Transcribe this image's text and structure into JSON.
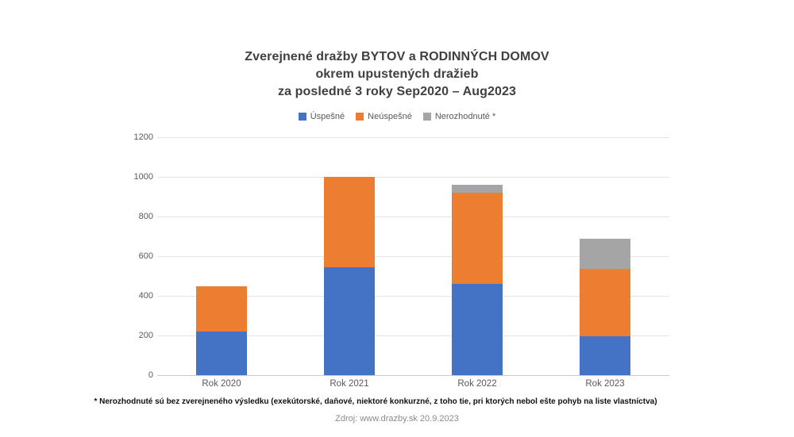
{
  "title": {
    "line1": "Zverejnené dražby BYTOV a RODINNÝCH DOMOV",
    "line2": "okrem upustených dražieb",
    "line3": "za posledné 3 roky Sep2020 – Aug2023"
  },
  "chart_data": {
    "type": "bar",
    "stacked": true,
    "title": "Zverejnené dražby BYTOV a RODINNÝCH DOMOV okrem upustených dražieb za posledné 3 roky Sep2020 – Aug2023",
    "categories": [
      "Rok 2020",
      "Rok 2021",
      "Rok 2022",
      "Rok 2023"
    ],
    "series": [
      {
        "name": "Úspešné",
        "color": "#4472C4",
        "values": [
          220,
          545,
          460,
          195
        ]
      },
      {
        "name": "Neúspešné",
        "color": "#ED7D31",
        "values": [
          230,
          455,
          460,
          340
        ]
      },
      {
        "name": "Nerozhodnuté *",
        "color": "#A5A5A5",
        "values": [
          0,
          0,
          40,
          155
        ]
      }
    ],
    "totals": [
      450,
      1000,
      960,
      690
    ],
    "xlabel": "",
    "ylabel": "",
    "ylim": [
      0,
      1200
    ],
    "ytick_step": 200,
    "yticks": [
      0,
      200,
      400,
      600,
      800,
      1000,
      1200
    ],
    "grid": true,
    "legend_position": "top"
  },
  "footnote": "* Nerozhodnuté sú bez zverejneného výsledku (exekútorské, daňové, niektoré konkurzné, z toho tie, pri ktorých nebol ešte pohyb na liste vlastníctva)",
  "source": "Zdroj: www.drazby.sk 20.9.2023"
}
